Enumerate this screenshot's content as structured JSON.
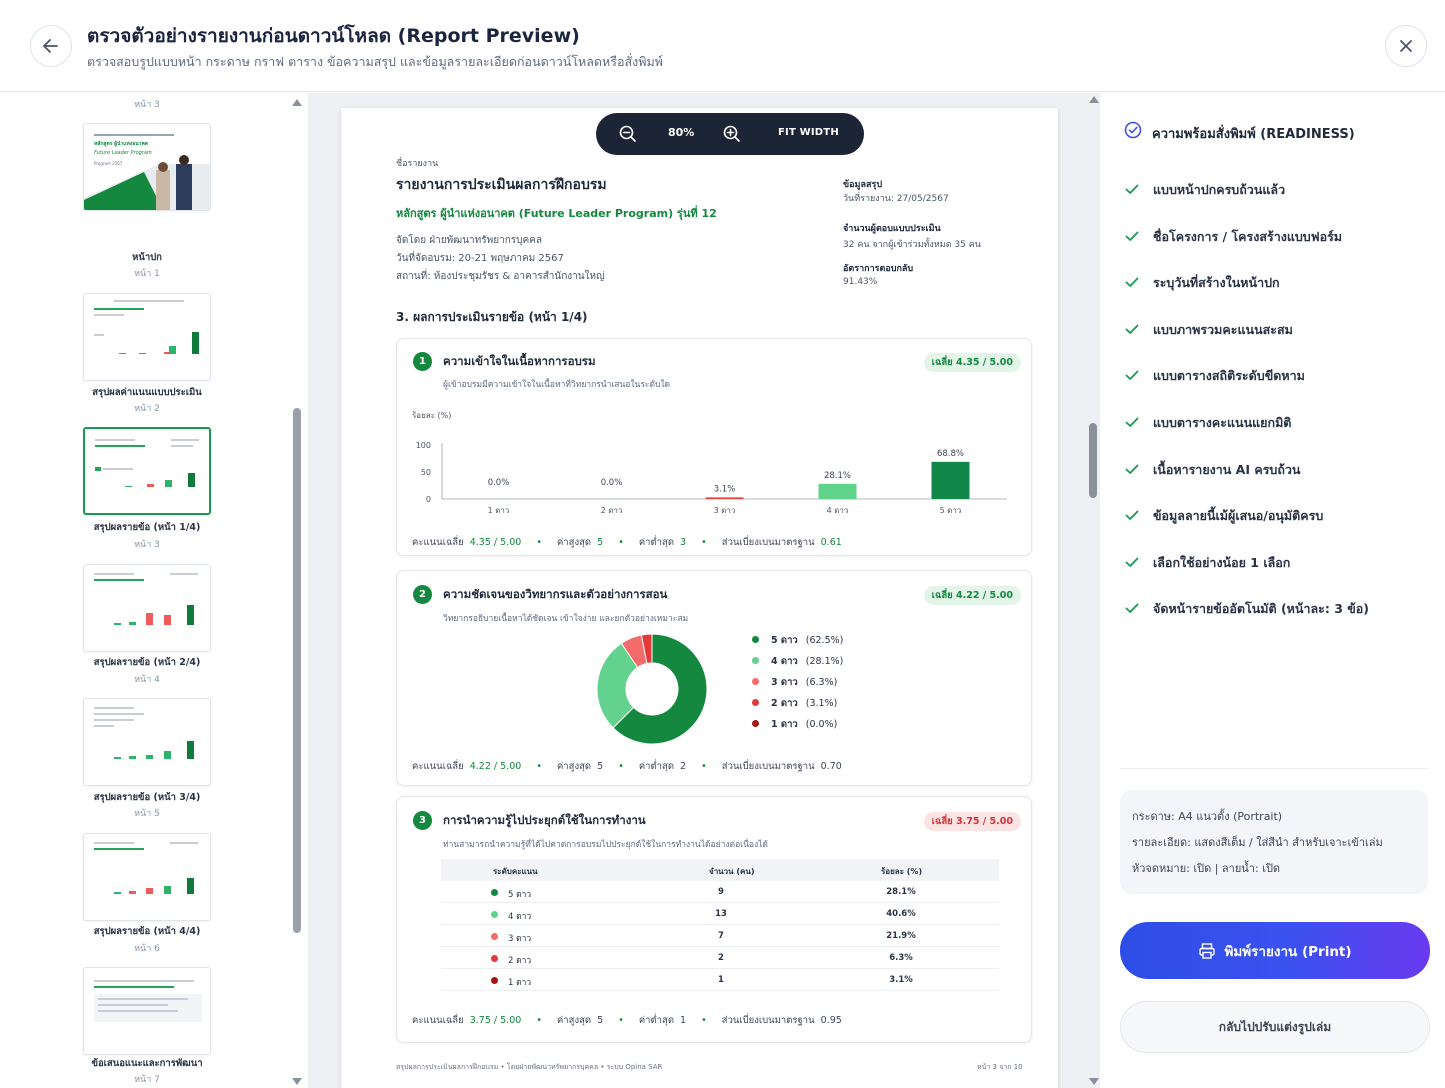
{
  "header": {
    "title": "ตรวจตัวอย่างรายงานก่อนดาวน์โหลด (Report Preview)",
    "subtitle": "ตรวจสอบรูปแบบหน้า กระดาษ กราฟ ตาราง ข้อความสรุป และข้อมูลรายละเอียดก่อนดาวน์โหลดหรือสั่งพิมพ์"
  },
  "thumbnails": [
    {
      "label": "",
      "page": "หน้า 3"
    },
    {
      "label": "หน้าปก",
      "page": "หน้า 1"
    },
    {
      "label": "สรุปผลค่าแนนแบบประเมิน",
      "page": "หน้า 2"
    },
    {
      "label": "สรุปผลรายข้อ (หน้า 1/4)",
      "page": "หน้า 3"
    },
    {
      "label": "สรุปผลรายข้อ (หน้า 2/4)",
      "page": "หน้า 4"
    },
    {
      "label": "สรุปผลรายข้อ (หน้า 3/4)",
      "page": "หน้า 5"
    },
    {
      "label": "สรุปผลรายข้อ (หน้า 4/4)",
      "page": "หน้า 6"
    },
    {
      "label": "ข้อเสนอแนะและการพัฒนา",
      "page": "หน้า 7"
    }
  ],
  "cover_thumb": {
    "line1": "หลักสูตร ผู้นำแห่งอนาคต",
    "line2": "Future Leader Program",
    "line3": "Program 2567"
  },
  "zoom": {
    "level": "80%",
    "fit_label": "FIT WIDTH"
  },
  "report": {
    "label": "ชื่อรายงาน",
    "title": "รายงานการประเมินผลการฝึกอบรม",
    "course": "หลักสูตร ผู้นำแห่งอนาคต (Future Leader Program) รุ่นที่ 12",
    "organizer": "จัดโดย  ฝ่ายพัฒนาทรัพยากรบุคคล",
    "date": "วันที่จัดอบรม:  20-21 พฤษภาคม 2567",
    "venue": "สถานที่:  ห้องประชุมรัชร & อาคารสำนักงานใหญ่",
    "summary_label": "ข้อมูลสรุป",
    "report_date": "วันที่รายงาน: 27/05/2567",
    "respondents_label": "จำนวนผู้ตอบแบบประเมิน",
    "respondents": "32 คน จากผู้เข้าร่วมทั้งหมด 35 คน",
    "response_rate_label": "อัตราการตอบกลับ",
    "response_rate": "91.43%",
    "section_title": "3. ผลการประเมินรายข้อ (หน้า 1/4)",
    "footer_left": "สรุปผลการประเมินผลการฝึกอบรม  •  โดยฝ่ายพัฒนาทรัพยากรบุคคล  •  ระบบ Opina SAR",
    "footer_right": "หน้า 3 จาก 10"
  },
  "questions": [
    {
      "num": "1",
      "title": "ความเข้าใจในเนื้อหาการอบรม",
      "desc": "ผู้เข้าอบรมมีความเข้าใจในเนื้อหาที่วิทยากรนำเสนอในระดับใด",
      "avg_badge": "เฉลี่ย  4.35 / 5.00",
      "stats": {
        "avg_label": "คะแนนเฉลี่ย",
        "avg": "4.35 / 5.00",
        "max_label": "ค่าสูงสุด",
        "max": "5",
        "min_label": "ค่าต่ำสุด",
        "min": "3",
        "sd_label": "ส่วนเบี่ยงเบนมาตรฐาน",
        "sd": "0.61"
      }
    },
    {
      "num": "2",
      "title": "ความชัดเจนของวิทยากรและตัวอย่างการสอน",
      "desc": "วิทยากรอธิบายเนื้อหาได้ชัดเจน เข้าใจง่าย และยกตัวอย่างเหมาะสม",
      "avg_badge": "เฉลี่ย  4.22 / 5.00",
      "stats": {
        "avg_label": "คะแนนเฉลี่ย",
        "avg": "4.22 / 5.00",
        "max_label": "ค่าสูงสุด",
        "max": "5",
        "min_label": "ค่าต่ำสุด",
        "min": "2",
        "sd_label": "ส่วนเบี่ยงเบนมาตรฐาน",
        "sd": "0.70"
      }
    },
    {
      "num": "3",
      "title": "การนำความรู้ไปประยุกต์ใช้ในการทำงาน",
      "desc": "ท่านสามารถนำความรู้ที่ได้ไปคาดการอบรมไปประยุกต์ใช้ในการทำงานได้อย่างต่อเนื่องได้",
      "avg_badge": "เฉลี่ย  3.75 / 5.00",
      "stats": {
        "avg_label": "คะแนนเฉลี่ย",
        "avg": "3.75 / 5.00",
        "max_label": "ค่าสูงสุด",
        "max": "5",
        "min_label": "ค่าต่ำสุด",
        "min": "1",
        "sd_label": "ส่วนเบี่ยงเบนมาตรฐาน",
        "sd": "0.95"
      }
    }
  ],
  "chart_data": [
    {
      "type": "bar",
      "ylabel": "ร้อยละ (%)",
      "yticks": [
        "100",
        "50",
        "0"
      ],
      "ylim": [
        0,
        100
      ],
      "categories": [
        "1 ดาว",
        "2 ดาว",
        "3 ดาว",
        "4 ดาว",
        "5 ดาว"
      ],
      "values": [
        0.0,
        0.0,
        3.1,
        28.1,
        68.8
      ],
      "labels": [
        "0.0%",
        "0.0%",
        "3.1%",
        "28.1%",
        "68.8%"
      ],
      "colors": [
        "#14883f",
        "#14883f",
        "#ef4444",
        "#5fd38a",
        "#11884a"
      ]
    },
    {
      "type": "pie",
      "donut": true,
      "legend": "right",
      "series": [
        {
          "name": "5 ดาว",
          "value": 62.5,
          "pct": "(62.5%)",
          "color": "#14883f"
        },
        {
          "name": "4 ดาว",
          "value": 28.1,
          "pct": "(28.1%)",
          "color": "#63d28e"
        },
        {
          "name": "3 ดาว",
          "value": 6.3,
          "pct": "(6.3%)",
          "color": "#f36b6b"
        },
        {
          "name": "2 ดาว",
          "value": 3.1,
          "pct": "(3.1%)",
          "color": "#e23a3a"
        },
        {
          "name": "1 ดาว",
          "value": 0.0,
          "pct": "(0.0%)",
          "color": "#a51717"
        }
      ]
    },
    {
      "type": "table",
      "columns": [
        "ระดับคะแนน",
        "จำนวน (คน)",
        "ร้อยละ (%)"
      ],
      "rows": [
        {
          "level": "5 ดาว",
          "count": "9",
          "pct": "28.1%",
          "color": "#14883f"
        },
        {
          "level": "4 ดาว",
          "count": "13",
          "pct": "40.6%",
          "color": "#63d28e"
        },
        {
          "level": "3 ดาว",
          "count": "7",
          "pct": "21.9%",
          "color": "#f36b6b"
        },
        {
          "level": "2 ดาว",
          "count": "2",
          "pct": "6.3%",
          "color": "#e23a3a"
        },
        {
          "level": "1 ดาว",
          "count": "1",
          "pct": "3.1%",
          "color": "#a51717"
        }
      ]
    }
  ],
  "readiness": {
    "title": "ความพร้อมสั่งพิมพ์ (READINESS)",
    "items": [
      "แบบหน้าปกครบถ้วนแล้ว",
      "ชื่อโครงการ / โครงสร้างแบบฟอร์ม",
      "ระบุวันที่สร้างในหน้าปก",
      "แบบภาพรวมคะแนนสะสม",
      "แบบตารางสถิติระดับขีดหาม",
      "แบบตารางคะแนนแยกมิติ",
      "เนื้อหารายงาน AI ครบถ้วน",
      "ข้อมูลลายนี้เม้ผู้เสนอ/อนุมัติครบ",
      "เลือกใช้อย่างน้อย 1 เลือก",
      "จัดหน้ารายข้ออัตโนมัติ (หน้าละ: 3 ข้อ)"
    ]
  },
  "info": {
    "paper": "กระดาษ: A4 แนวตั้ง (Portrait)",
    "detail": "รายละเอียด: แสดงสีเต็ม / ใส่สีนำ สำหรับเจาะเข้าเล่ม",
    "header_footer": "หัวจดหมาย: เปิด  |  ลายน้ำ: เปิด"
  },
  "actions": {
    "print": "พิมพ์รายงาน (Print)",
    "back_edit": "กลับไปปรับแต่งรูปเล่ม"
  },
  "colors": {
    "accent": "#14883f",
    "primary": "#3b52f0",
    "check": "#1a9a50"
  }
}
